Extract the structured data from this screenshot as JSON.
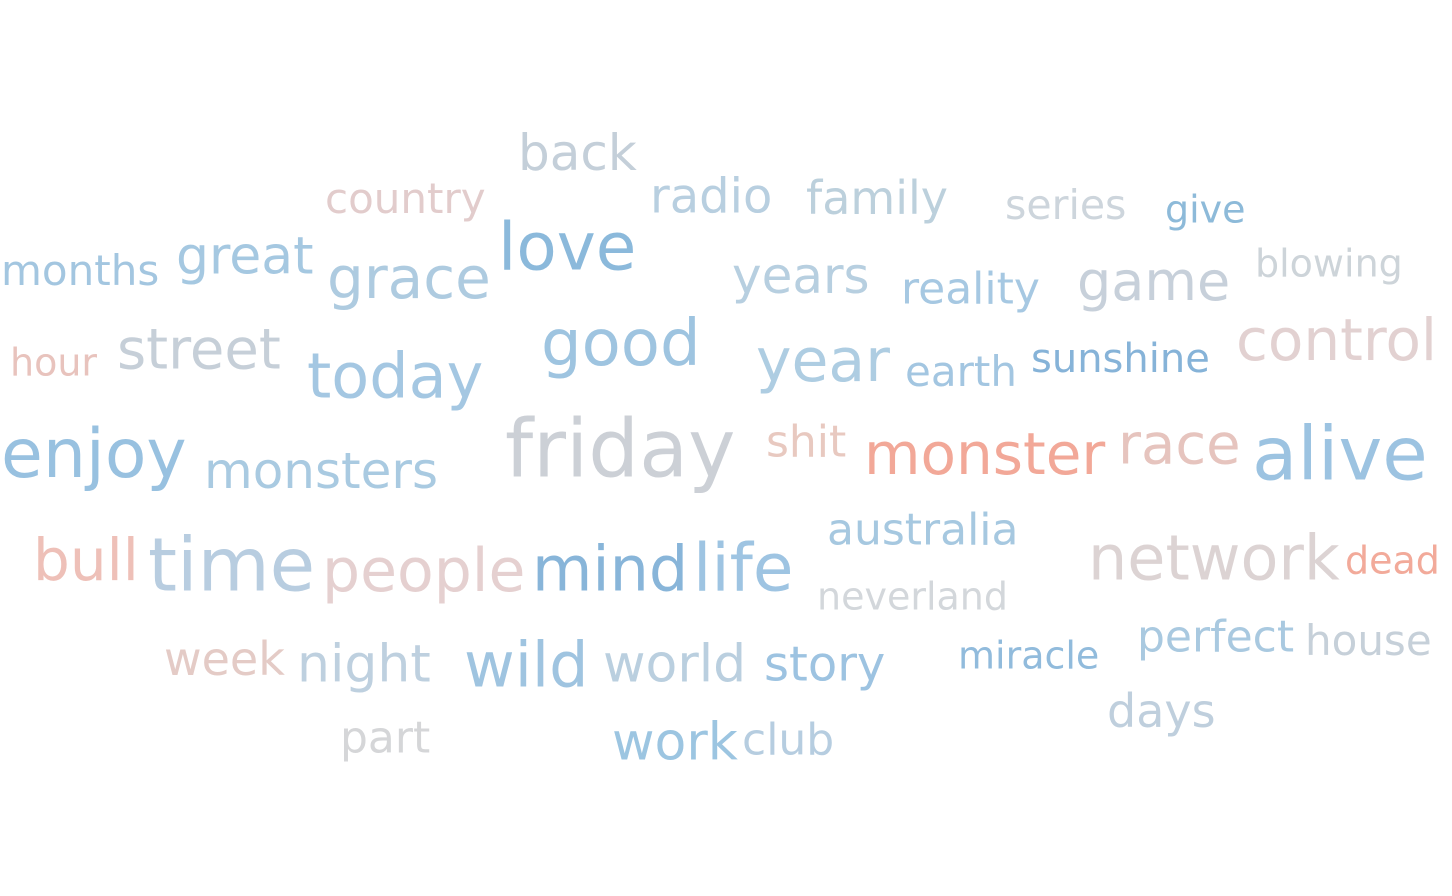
{
  "words": [
    {
      "text": "back",
      "color": "#c4cfd9"
    },
    {
      "text": "country",
      "color": "#e2cccc"
    },
    {
      "text": "radio",
      "color": "#b8cfe0"
    },
    {
      "text": "family",
      "color": "#bcd0dc"
    },
    {
      "text": "series",
      "color": "#cdd5dc"
    },
    {
      "text": "give",
      "color": "#8dbad9"
    },
    {
      "text": "months",
      "color": "#a3c6e0"
    },
    {
      "text": "great",
      "color": "#a5c8e1"
    },
    {
      "text": "grace",
      "color": "#aecbe0"
    },
    {
      "text": "love",
      "color": "#8bb9db"
    },
    {
      "text": "years",
      "color": "#b7cfe0"
    },
    {
      "text": "reality",
      "color": "#a6c8e2"
    },
    {
      "text": "game",
      "color": "#c7d0da"
    },
    {
      "text": "blowing",
      "color": "#cdd4d9"
    },
    {
      "text": "hour",
      "color": "#e8c3bd"
    },
    {
      "text": "street",
      "color": "#c6cfd8"
    },
    {
      "text": "today",
      "color": "#a4c7e2"
    },
    {
      "text": "good",
      "color": "#9ec4e0"
    },
    {
      "text": "year",
      "color": "#aecde2"
    },
    {
      "text": "earth",
      "color": "#a3c6e1"
    },
    {
      "text": "sunshine",
      "color": "#86b3d8"
    },
    {
      "text": "control",
      "color": "#e2d1d1"
    },
    {
      "text": "enjoy",
      "color": "#98c1e0"
    },
    {
      "text": "monsters",
      "color": "#a9cae1"
    },
    {
      "text": "friday",
      "color": "#ccd0d6"
    },
    {
      "text": "shit",
      "color": "#e8c9c0"
    },
    {
      "text": "monster",
      "color": "#f2a898"
    },
    {
      "text": "race",
      "color": "#e6c4be"
    },
    {
      "text": "alive",
      "color": "#9cc3e1"
    },
    {
      "text": "australia",
      "color": "#a6c8e0"
    },
    {
      "text": "bull",
      "color": "#eec0b8"
    },
    {
      "text": "time",
      "color": "#b8cde0"
    },
    {
      "text": "people",
      "color": "#e5d0d0"
    },
    {
      "text": "mind",
      "color": "#88b5d9"
    },
    {
      "text": "life",
      "color": "#9ec4e2"
    },
    {
      "text": "network",
      "color": "#dcd3d3"
    },
    {
      "text": "dead",
      "color": "#f2aa9a"
    },
    {
      "text": "neverland",
      "color": "#d3d7db"
    },
    {
      "text": "week",
      "color": "#e4cbc6"
    },
    {
      "text": "night",
      "color": "#bed0df"
    },
    {
      "text": "wild",
      "color": "#9fc4e0"
    },
    {
      "text": "world",
      "color": "#bacfdf"
    },
    {
      "text": "story",
      "color": "#9dc3e1"
    },
    {
      "text": "miracle",
      "color": "#91bbdc"
    },
    {
      "text": "perfect",
      "color": "#a9c9e0"
    },
    {
      "text": "house",
      "color": "#c6d0d9"
    },
    {
      "text": "days",
      "color": "#bfcfdd"
    },
    {
      "text": "part",
      "color": "#d5d6d8"
    },
    {
      "text": "work",
      "color": "#9cc5e1"
    },
    {
      "text": "club",
      "color": "#b6cde0"
    }
  ]
}
